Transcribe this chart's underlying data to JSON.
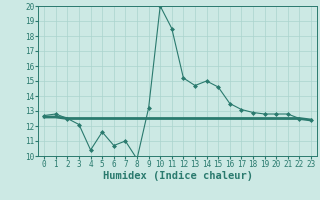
{
  "title": "",
  "xlabel": "Humidex (Indice chaleur)",
  "xlim": [
    -0.5,
    23.5
  ],
  "ylim": [
    10,
    20
  ],
  "yticks": [
    10,
    11,
    12,
    13,
    14,
    15,
    16,
    17,
    18,
    19,
    20
  ],
  "xticks": [
    0,
    1,
    2,
    3,
    4,
    5,
    6,
    7,
    8,
    9,
    10,
    11,
    12,
    13,
    14,
    15,
    16,
    17,
    18,
    19,
    20,
    21,
    22,
    23
  ],
  "line1_x": [
    0,
    1,
    2,
    3,
    4,
    5,
    6,
    7,
    8,
    9,
    10,
    11,
    12,
    13,
    14,
    15,
    16,
    17,
    18,
    19,
    20,
    21,
    22,
    23
  ],
  "line1_y": [
    12.7,
    12.8,
    12.5,
    12.1,
    10.4,
    11.6,
    10.7,
    11.0,
    9.8,
    13.2,
    20.0,
    18.5,
    15.2,
    14.7,
    15.0,
    14.6,
    13.5,
    13.1,
    12.9,
    12.8,
    12.8,
    12.8,
    12.5,
    12.4
  ],
  "line2_x": [
    0,
    1,
    2,
    3,
    4,
    5,
    6,
    7,
    8,
    9,
    10,
    11,
    12,
    13,
    14,
    15,
    16,
    17,
    18,
    19,
    20,
    21,
    22,
    23
  ],
  "line2_y": [
    12.6,
    12.6,
    12.5,
    12.5,
    12.5,
    12.5,
    12.5,
    12.5,
    12.5,
    12.5,
    12.5,
    12.5,
    12.5,
    12.5,
    12.5,
    12.5,
    12.5,
    12.5,
    12.5,
    12.5,
    12.5,
    12.5,
    12.5,
    12.4
  ],
  "line_color": "#2a7a6e",
  "bg_color": "#cce9e4",
  "grid_color": "#aad4ce",
  "tick_fontsize": 5.5,
  "label_fontsize": 7.5
}
